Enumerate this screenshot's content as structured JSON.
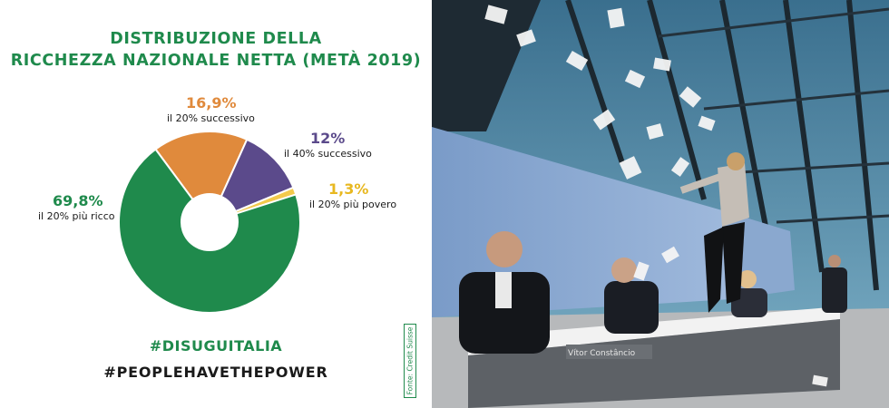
{
  "chart_data": {
    "type": "pie",
    "title_line1": "DISTRIBUZIONE DELLA",
    "title_line2": "RICCHEZZA NAZIONALE NETTA (METÀ 2019)",
    "slices": [
      {
        "label": "il 20% più ricco",
        "value": 69.8,
        "value_text": "69,8%",
        "color": "#1f8a4c"
      },
      {
        "label": "il 20% successivo",
        "value": 16.9,
        "value_text": "16,9%",
        "color": "#e08a3c"
      },
      {
        "label": "il 40% successivo",
        "value": 12,
        "value_text": "12%",
        "color": "#5b4a8b"
      },
      {
        "label": "il 20% più povero",
        "value": 1.3,
        "value_text": "1,3%",
        "color": "#f2c94c"
      }
    ]
  },
  "hashtags": [
    "#DISUGUITALIA",
    "#PEOPLEHAVETHEPOWER"
  ],
  "source": "Fonte: Credit Suisse",
  "photo": {
    "nameplate": "Vítor Constâncio"
  }
}
